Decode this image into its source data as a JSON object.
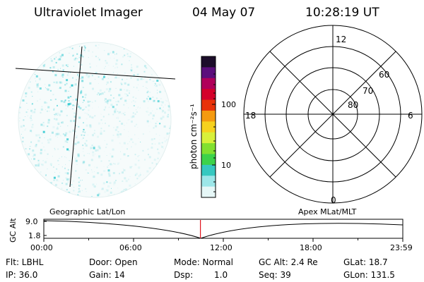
{
  "header": {
    "title": "Ultraviolet Imager",
    "date": "04 May 07",
    "time": "10:28:19 UT"
  },
  "colorbar": {
    "unit_label": "photon cm⁻²s⁻¹",
    "ticks": [
      "100",
      "10"
    ],
    "colors": [
      "#1c0d2a",
      "#5b0e7c",
      "#b0005a",
      "#d4002a",
      "#e8320a",
      "#f49a10",
      "#f6d11e",
      "#d8f03a",
      "#82e030",
      "#3cd24a",
      "#36c8c0",
      "#9ce6e8",
      "#e6f7f7"
    ]
  },
  "image_panel": {
    "speckle_color": "#2cc8d0"
  },
  "polar_plot": {
    "lat_labels": [
      "60",
      "70",
      "80"
    ],
    "mlt_labels": {
      "top": "12",
      "left": "18",
      "right": "6",
      "bottom": "0"
    }
  },
  "altitude_strip": {
    "axis_label": "GC Alt",
    "y_max": "9.0",
    "y_min": "1.8",
    "left_label": "Geographic Lat/Lon",
    "right_label": "Apex MLat/MLT",
    "marker_color": "#e0141e",
    "time_ticks": [
      "00:00",
      "06:00",
      "12:00",
      "18:00",
      "23:59"
    ],
    "marker_time_hours": 10.47
  },
  "status": {
    "flt": "Flt: LBHL",
    "door": "Door: Open",
    "mode": "Mode: Normal",
    "gc_alt": "GC Alt: 2.4 Re",
    "glat": "GLat: 18.7",
    "ip": "IP: 36.0",
    "gain": "Gain: 14",
    "dsp_label": "Dsp:",
    "dsp_value": "1.0",
    "seq": "Seq: 39",
    "glon": "GLon: 131.5"
  }
}
